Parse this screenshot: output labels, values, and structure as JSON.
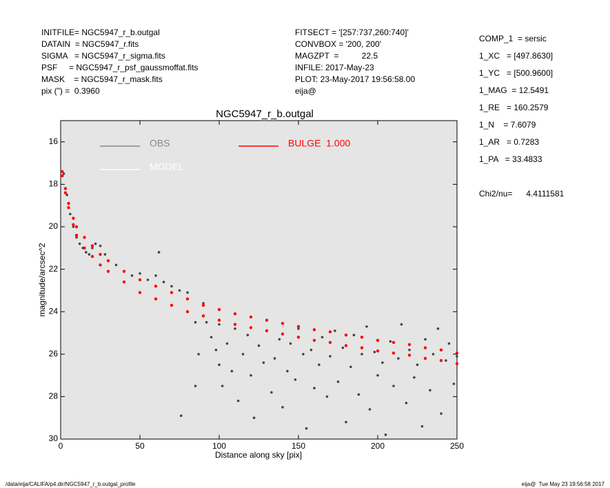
{
  "header": {
    "left": [
      "INITFILE= NGC5947_r_b.outgal",
      "DATAIN  = NGC5947_r.fits",
      "SIGMA   = NGC5947_r_sigma.fits",
      "PSF     = NGC5947_r_psf_gaussmoffat.fits",
      "MASK    = NGC5947_r_mask.fits",
      "pix (\") =  0.3960"
    ],
    "middle": [
      "FITSECT = '[257:737,260:740]'",
      "CONVBOX = '200, 200'",
      "MAGZPT  =          22.5",
      "INFILE: 2017-May-23",
      "PLOT: 23-May-2017 19:56:58.00",
      "eija@"
    ],
    "right": [
      "COMP_1  = sersic",
      "1_XC   = [497.8630]",
      "1_YC   = [500.9600]",
      "1_MAG  = 12.5491",
      "1_RE   = 160.2579",
      "1_N    = 7.6079",
      "1_AR   = 0.7283",
      "1_PA   = 33.4833"
    ],
    "chi2": "Chi2/nu=      4.4111581"
  },
  "footer": {
    "left": "/data/eija/CALIFA/p4.dir/NGC5947_r_b.outgal_profile",
    "right": "eija@  Tue May 23 19:56:58 2017"
  },
  "chart_data": {
    "type": "scatter",
    "title": "NGC5947_r_b.outgal",
    "x_label": "Distance along sky [pix]",
    "y_label": "magnitude/arcsec^2",
    "xlim": [
      0,
      250
    ],
    "xticks": [
      0,
      50,
      100,
      150,
      200,
      250
    ],
    "ylim": [
      30,
      15
    ],
    "yticks": [
      16,
      18,
      20,
      22,
      24,
      26,
      28,
      30
    ],
    "background": "#e5e5e5",
    "legend": [
      {
        "name": "OBS",
        "color": "#888888"
      },
      {
        "name": "MODEL",
        "color": "#ffffff"
      },
      {
        "name": "BULGE  1.000",
        "color": "#ff0000"
      }
    ],
    "series": [
      {
        "name": "OBS",
        "color": "#444444",
        "x": [
          2,
          4,
          6,
          8,
          10,
          12,
          14,
          16,
          18,
          20,
          22,
          25,
          28,
          30,
          35,
          40,
          45,
          50,
          55,
          60,
          62,
          65,
          70,
          75,
          76,
          80,
          85,
          85,
          87,
          90,
          92,
          95,
          98,
          100,
          100,
          102,
          105,
          108,
          110,
          112,
          115,
          118,
          120,
          122,
          125,
          128,
          130,
          133,
          135,
          138,
          140,
          143,
          145,
          148,
          150,
          153,
          155,
          158,
          160,
          163,
          165,
          168,
          170,
          173,
          175,
          178,
          180,
          183,
          185,
          188,
          190,
          193,
          195,
          198,
          200,
          203,
          205,
          208,
          210,
          213,
          215,
          218,
          220,
          223,
          225,
          228,
          230,
          233,
          235,
          238,
          240,
          243,
          245,
          248,
          250
        ],
        "values": [
          17.5,
          18.5,
          19.4,
          20.0,
          20.5,
          20.8,
          21.0,
          21.2,
          21.3,
          21.0,
          20.8,
          20.9,
          21.3,
          21.6,
          21.8,
          22.1,
          22.3,
          22.2,
          22.5,
          22.3,
          21.2,
          22.6,
          22.8,
          23.0,
          28.9,
          23.1,
          24.5,
          27.5,
          26.0,
          23.6,
          24.5,
          25.2,
          25.8,
          24.6,
          26.5,
          27.5,
          25.5,
          26.8,
          24.8,
          28.2,
          26.0,
          25.1,
          27.0,
          29.0,
          25.6,
          26.4,
          24.9,
          27.8,
          26.2,
          25.3,
          28.5,
          26.8,
          25.5,
          27.2,
          24.8,
          26.0,
          29.5,
          25.8,
          27.6,
          26.5,
          25.2,
          28.0,
          26.1,
          24.9,
          27.3,
          25.7,
          29.2,
          26.6,
          25.1,
          27.9,
          26.0,
          24.7,
          28.6,
          25.9,
          27.0,
          26.4,
          29.8,
          25.4,
          27.5,
          26.2,
          24.6,
          28.3,
          25.8,
          27.1,
          26.5,
          29.4,
          25.3,
          27.7,
          26.0,
          24.8,
          28.8,
          26.3,
          25.5,
          27.4,
          26.1
        ]
      },
      {
        "name": "BULGE  1.000",
        "color": "#ff0000",
        "x": [
          1,
          1,
          3,
          3,
          5,
          5,
          8,
          8,
          10,
          10,
          15,
          15,
          20,
          20,
          25,
          25,
          30,
          30,
          40,
          40,
          50,
          50,
          60,
          60,
          70,
          70,
          80,
          80,
          90,
          90,
          100,
          100,
          110,
          110,
          120,
          120,
          130,
          130,
          140,
          140,
          150,
          150,
          160,
          160,
          170,
          170,
          180,
          180,
          190,
          190,
          200,
          200,
          210,
          210,
          220,
          220,
          230,
          230,
          240,
          240,
          250,
          250
        ],
        "values": [
          17.4,
          17.6,
          18.2,
          18.4,
          18.9,
          19.1,
          19.6,
          19.9,
          20.0,
          20.4,
          20.5,
          21.0,
          20.9,
          21.4,
          21.3,
          21.8,
          21.6,
          22.1,
          22.1,
          22.6,
          22.5,
          23.1,
          22.8,
          23.4,
          23.1,
          23.7,
          23.4,
          24.0,
          23.7,
          24.2,
          23.9,
          24.4,
          24.1,
          24.6,
          24.25,
          24.75,
          24.4,
          24.9,
          24.55,
          25.05,
          24.7,
          25.2,
          24.85,
          25.35,
          24.95,
          25.45,
          25.1,
          25.6,
          25.2,
          25.7,
          25.35,
          25.85,
          25.45,
          25.95,
          25.55,
          26.05,
          25.7,
          26.2,
          25.8,
          26.3,
          25.95,
          26.45
        ]
      }
    ]
  }
}
